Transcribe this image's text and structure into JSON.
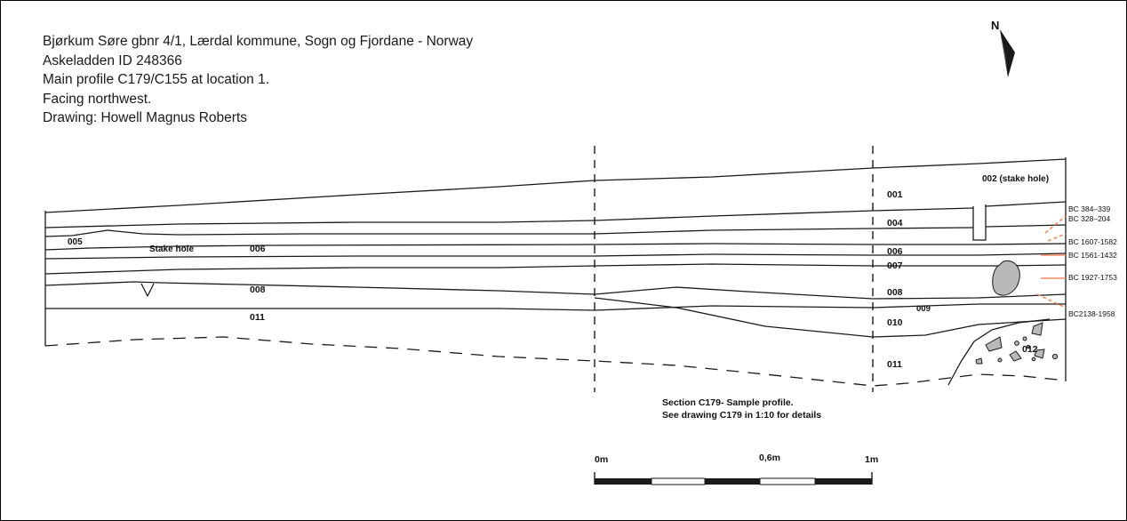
{
  "header": {
    "line1": "Bjørkum Søre gbnr 4/1, Lærdal kommune, Sogn og Fjordane - Norway",
    "line2": "Askeladden ID 248366",
    "line3": "Main profile C179/C155 at location 1.",
    "line4": "Facing northwest.",
    "line5": "Drawing: Howell Magnus Roberts"
  },
  "north_arrow": {
    "label": "N",
    "icon": "north-arrow-icon"
  },
  "layers": {
    "l001": "001",
    "l002": "002 (stake hole)",
    "l004": "004",
    "l005": "005",
    "l006_left": "006",
    "l006_right": "006",
    "l007": "007",
    "l008_left": "008",
    "l008_right": "008",
    "l009": "009",
    "l010": "010",
    "l011_left": "011",
    "l011_right": "011",
    "l012": "012",
    "stake_hole": "Stake hole"
  },
  "dates": {
    "d1": "BC 384–339",
    "d2": "BC 328–204",
    "d3": "BC 1607-1582",
    "d4": "BC 1561-1432",
    "d5": "BC 1927-1753",
    "d6": "BC2138-1958"
  },
  "notes": {
    "line1": "Section C179- Sample profile.",
    "line2": "See drawing C179 in 1:10 for details"
  },
  "scale": {
    "start": "0m",
    "mid": "0,6m",
    "end": "1m"
  },
  "colors": {
    "line": "#1a1a1a",
    "sample_marker": "#f08a5d",
    "stone_fill": "#b9b9b9"
  }
}
